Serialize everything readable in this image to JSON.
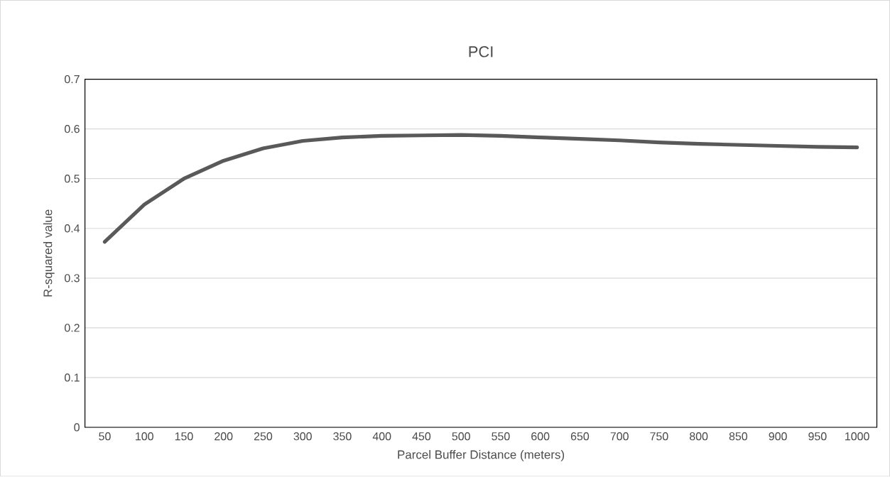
{
  "chart_data": {
    "type": "line",
    "title": "PCI",
    "xlabel": "Parcel Buffer Distance (meters)",
    "ylabel": "R-squared value",
    "categories": [
      "50",
      "100",
      "150",
      "200",
      "250",
      "300",
      "350",
      "400",
      "450",
      "500",
      "550",
      "600",
      "650",
      "700",
      "750",
      "800",
      "850",
      "900",
      "950",
      "1000"
    ],
    "series": [
      {
        "color": "#595959",
        "values": [
          0.373,
          0.448,
          0.5,
          0.536,
          0.561,
          0.576,
          0.583,
          0.586,
          0.587,
          0.588,
          0.586,
          0.583,
          0.58,
          0.577,
          0.573,
          0.57,
          0.568,
          0.566,
          0.564,
          0.563
        ]
      }
    ],
    "ylim": [
      0,
      0.7
    ],
    "yticks": [
      0,
      0.1,
      0.2,
      0.3,
      0.4,
      0.5,
      0.6,
      0.7
    ],
    "grid": "y"
  }
}
